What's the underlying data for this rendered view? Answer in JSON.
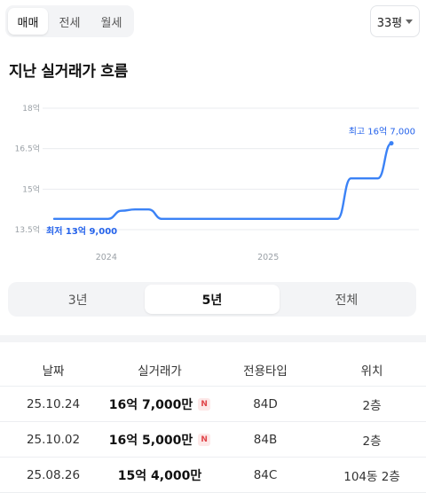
{
  "deal_tabs": {
    "items": [
      {
        "label": "매매",
        "active": true
      },
      {
        "label": "전세",
        "active": false
      },
      {
        "label": "월세",
        "active": false
      }
    ]
  },
  "area_selector": {
    "label": "33평"
  },
  "section_title": "지난 실거래가 흐름",
  "chart_data": {
    "type": "line",
    "x": [
      "2023-09",
      "2023-10",
      "2023-11",
      "2023-12",
      "2024-01",
      "2024-02",
      "2024-03",
      "2024-04",
      "2024-05",
      "2024-06",
      "2024-07",
      "2024-08",
      "2024-09",
      "2024-10",
      "2024-11",
      "2024-12",
      "2025-01",
      "2025-02",
      "2025-03",
      "2025-04",
      "2025-05",
      "2025-06",
      "2025-07",
      "2025-08",
      "2025-09",
      "2025-10"
    ],
    "series": [
      {
        "values": [
          13.9,
          13.9,
          13.9,
          13.9,
          13.9,
          14.2,
          14.25,
          14.25,
          13.9,
          13.9,
          13.9,
          13.9,
          13.9,
          13.9,
          13.9,
          13.9,
          13.9,
          13.9,
          13.9,
          13.9,
          13.9,
          13.9,
          15.4,
          15.4,
          15.4,
          16.7
        ],
        "color": "#3b82f6"
      }
    ],
    "y_unit_label": "억",
    "yticks": [
      "13.5억",
      "15억",
      "16.5억",
      "18억"
    ],
    "ytick_values": [
      13.5,
      15,
      16.5,
      18
    ],
    "xticks": [
      "2024",
      "2025"
    ],
    "xtick_positions": [
      "2024-01",
      "2025-01"
    ],
    "ylim": [
      13.5,
      18
    ],
    "grid": true,
    "annotations": {
      "max": "최고 16억 7,000",
      "min": "최저 13억 9,000"
    }
  },
  "range_tabs": {
    "items": [
      {
        "label": "3년",
        "active": false
      },
      {
        "label": "5년",
        "active": true
      },
      {
        "label": "전체",
        "active": false
      }
    ]
  },
  "table": {
    "headers": [
      "날짜",
      "실거래가",
      "전용타입",
      "위치"
    ],
    "rows": [
      {
        "date": "25.10.24",
        "price": "16억 7,000만",
        "badge": "N",
        "type": "84D",
        "location": "2층"
      },
      {
        "date": "25.10.02",
        "price": "16억 5,000만",
        "badge": "N",
        "type": "84B",
        "location": "2층"
      },
      {
        "date": "25.08.26",
        "price": "15억 4,000만",
        "badge": "",
        "type": "84C",
        "location": "104동 2층"
      }
    ]
  }
}
